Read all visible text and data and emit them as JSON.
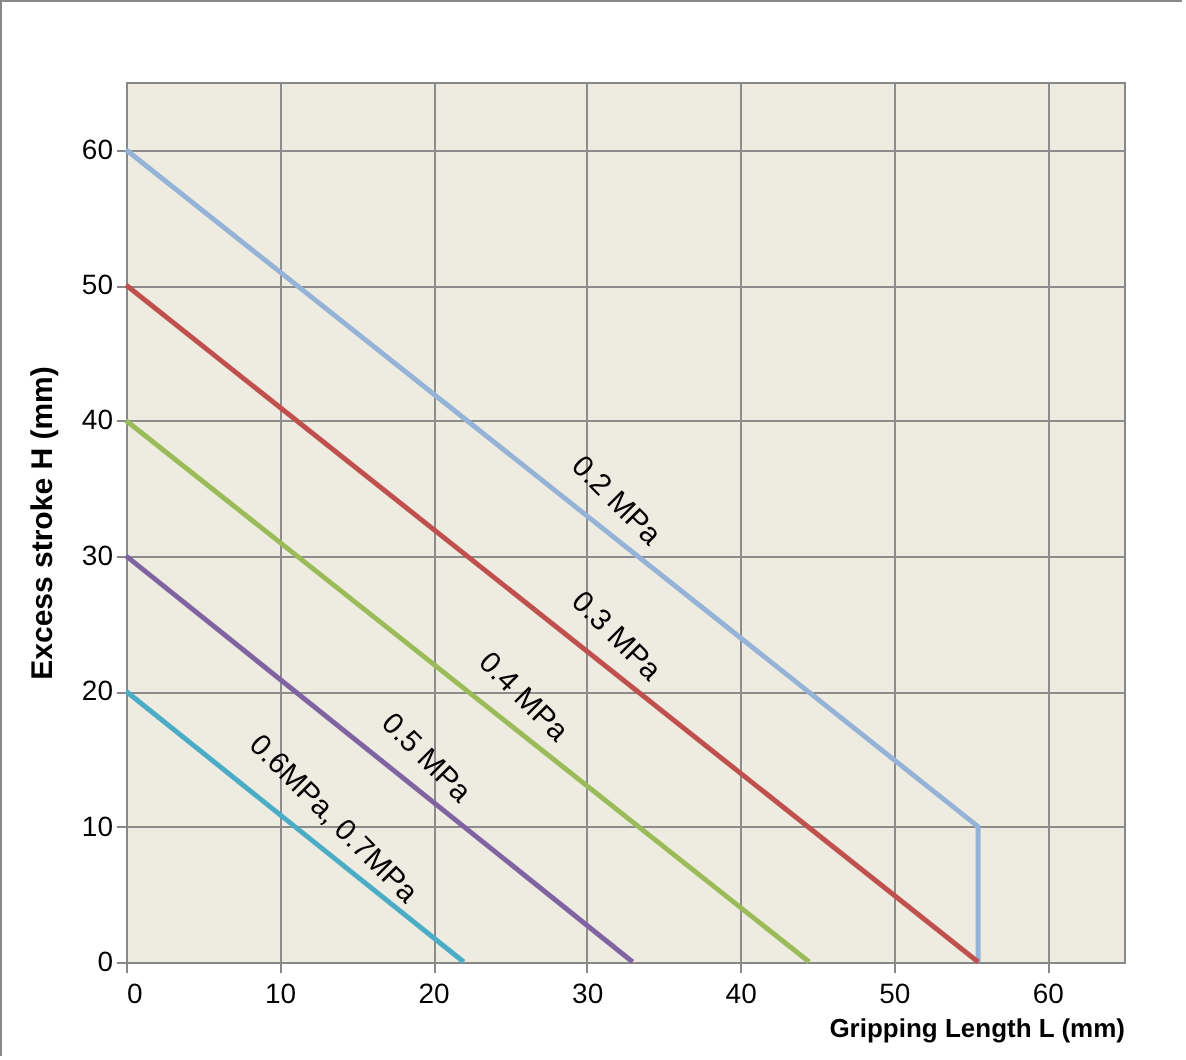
{
  "chart_data": {
    "type": "line",
    "xlabel": "Gripping Length L (mm)",
    "ylabel": "Excess stroke H  (mm)",
    "xlim": [
      0,
      65
    ],
    "xticks": [
      0,
      10,
      20,
      30,
      40,
      50,
      60
    ],
    "ylim": [
      0,
      65
    ],
    "yticks": [
      0,
      10,
      20,
      30,
      40,
      50,
      60
    ],
    "grid": true,
    "legend": false,
    "marker": "none",
    "line_style": "solid",
    "series": [
      {
        "name": "0.2 MPa",
        "color": "#95b3d7",
        "x": [
          0,
          55.5,
          55.5
        ],
        "values": [
          60,
          10,
          0
        ]
      },
      {
        "name": "0.3 MPa",
        "color": "#c0504d",
        "x": [
          0,
          55.5
        ],
        "values": [
          50,
          0
        ]
      },
      {
        "name": "0.4 MPa",
        "color": "#9bbb59",
        "x": [
          0,
          44.5
        ],
        "values": [
          40,
          0
        ]
      },
      {
        "name": "0.5 MPa",
        "color": "#8064a2",
        "x": [
          0,
          33
        ],
        "values": [
          30,
          0
        ]
      },
      {
        "name": "0.6MPa, 0.7MPa",
        "color": "#4bacc6",
        "x": [
          0,
          22
        ],
        "values": [
          20,
          0
        ]
      }
    ]
  }
}
